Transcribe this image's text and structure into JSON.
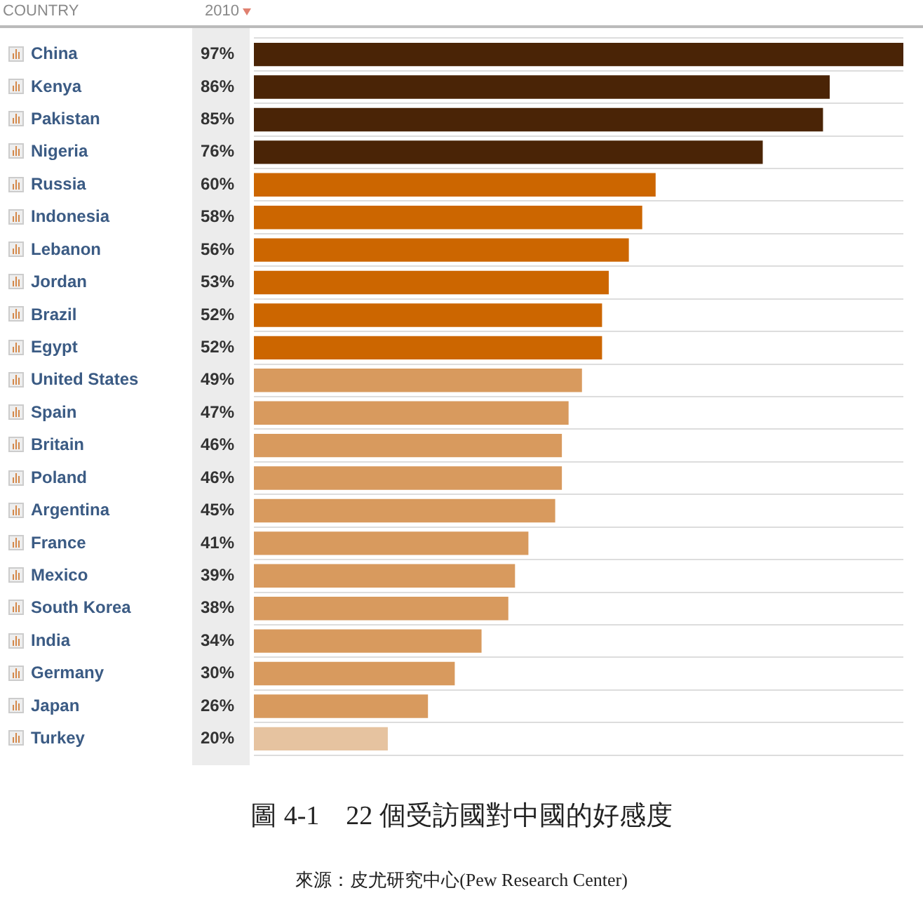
{
  "chart_data": {
    "type": "bar",
    "orientation": "horizontal",
    "title": "圖 4-1　22 個受訪國對中國的好感度",
    "ylabel": "COUNTRY",
    "xlabel": "2010",
    "categories": [
      "China",
      "Kenya",
      "Pakistan",
      "Nigeria",
      "Russia",
      "Indonesia",
      "Lebanon",
      "Jordan",
      "Brazil",
      "Egypt",
      "United States",
      "Spain",
      "Britain",
      "Poland",
      "Argentina",
      "France",
      "Mexico",
      "South Korea",
      "India",
      "Germany",
      "Japan",
      "Turkey"
    ],
    "values": [
      97,
      86,
      85,
      76,
      60,
      58,
      56,
      53,
      52,
      52,
      49,
      47,
      46,
      46,
      45,
      41,
      39,
      38,
      34,
      30,
      26,
      20
    ],
    "value_labels": [
      "97%",
      "86%",
      "85%",
      "76%",
      "60%",
      "58%",
      "56%",
      "53%",
      "52%",
      "52%",
      "49%",
      "47%",
      "46%",
      "46%",
      "45%",
      "41%",
      "39%",
      "38%",
      "34%",
      "30%",
      "26%",
      "20%"
    ],
    "colors": [
      "#4a2406",
      "#4a2406",
      "#4a2406",
      "#4a2406",
      "#cc6600",
      "#cc6600",
      "#cc6600",
      "#cc6600",
      "#cc6600",
      "#cc6600",
      "#d89a5e",
      "#d89a5e",
      "#d89a5e",
      "#d89a5e",
      "#d89a5e",
      "#d89a5e",
      "#d89a5e",
      "#d89a5e",
      "#d89a5e",
      "#d89a5e",
      "#d89a5e",
      "#e6c3a0"
    ],
    "grid": "y",
    "legend": false,
    "annotations": [
      "來源：皮尤研究中心(Pew Research Center)"
    ]
  }
}
